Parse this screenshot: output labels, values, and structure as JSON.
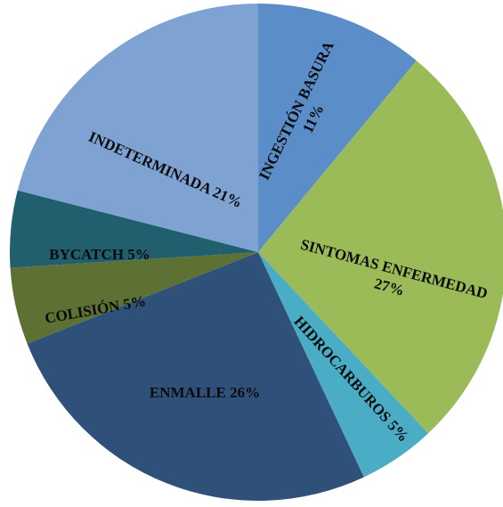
{
  "chart_data": {
    "type": "pie",
    "title": "",
    "slices": [
      {
        "label": "INGESTIÓN BASURA",
        "value_label": "11%",
        "value": 11,
        "color": "#5b8dc9"
      },
      {
        "label": "SINTOMAS ENFERMEDAD",
        "value_label": "27%",
        "value": 27,
        "color": "#9bbb59"
      },
      {
        "label": "HIDROCARBUROS",
        "value_label": "5%",
        "value": 5,
        "color": "#4bacc6"
      },
      {
        "label": "ENMALLE",
        "value_label": "26%",
        "value": 26,
        "color": "#2f5179"
      },
      {
        "label": "COLISIÓN",
        "value_label": "5%",
        "value": 5,
        "color": "#5c7133"
      },
      {
        "label": "BYCATCH",
        "value_label": "5%",
        "value": 5,
        "color": "#215f6e"
      },
      {
        "label": "INDETERMINADA",
        "value_label": "21%",
        "value": 21,
        "color": "#7ea3d3"
      }
    ],
    "start_angle_deg": 0,
    "direction": "clockwise",
    "legend": "none"
  }
}
